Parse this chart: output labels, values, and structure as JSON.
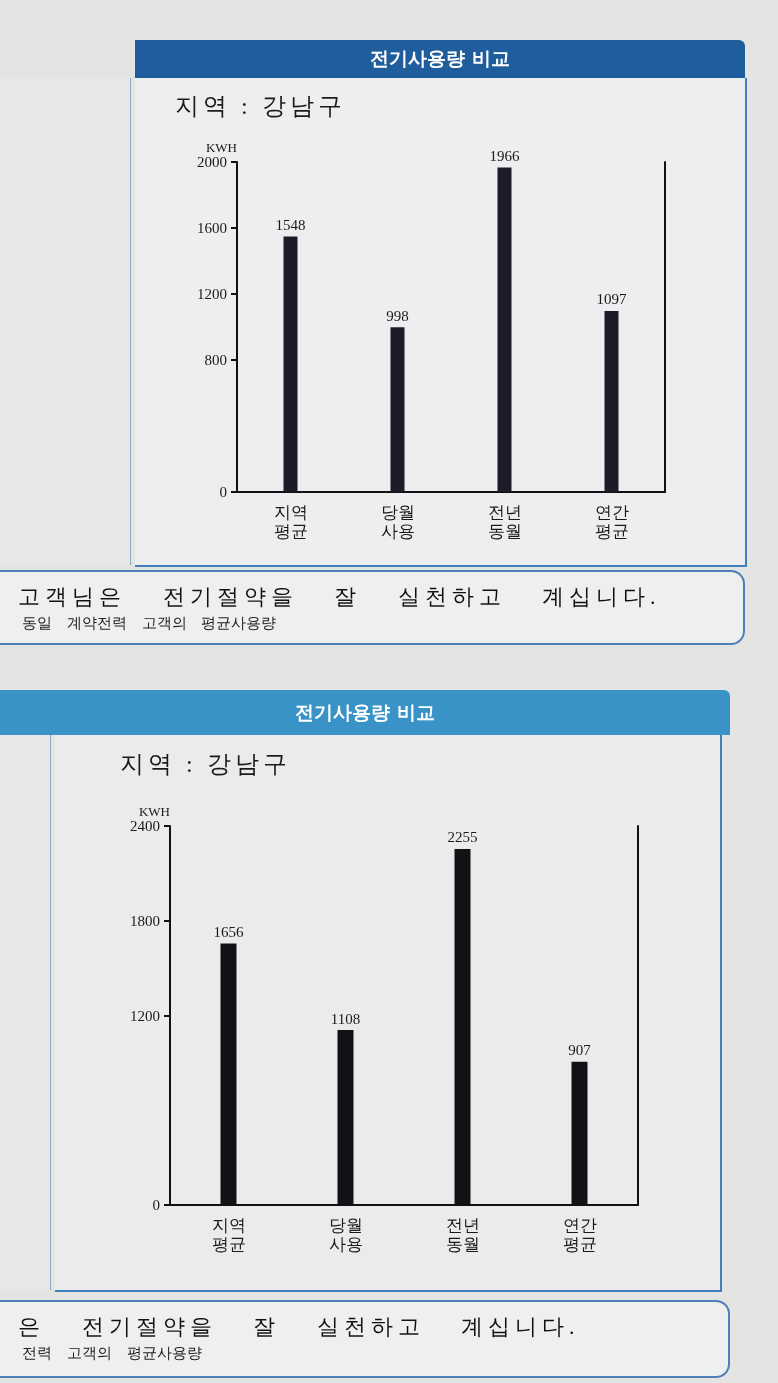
{
  "chart_data": [
    {
      "type": "bar",
      "title": "전기사용량 비교",
      "subtitle": "지역 : 강남구",
      "ylabel": "KWH",
      "categories": [
        "지역 평균",
        "당월 사용",
        "전년 동월",
        "연간 평균"
      ],
      "values": [
        1548,
        998,
        1966,
        1097
      ],
      "color": "#1c1c28",
      "ylim": [
        0,
        2000
      ],
      "yticks": [
        0,
        800,
        1200,
        1600,
        2000
      ],
      "data_labels": true,
      "annotations": [
        "고객님은 전기절약을 잘 실천하고 계십니다.",
        "동일 계약전력 고객의 평균사용량"
      ]
    },
    {
      "type": "bar",
      "title": "전기사용량 비교",
      "subtitle": "지역 : 강남구",
      "ylabel": "KWH",
      "categories": [
        "지역 평균",
        "당월 사용",
        "전년 동월",
        "연간 평균"
      ],
      "values": [
        1656,
        1108,
        2255,
        907
      ],
      "color": "#121216",
      "ylim": [
        0,
        2400
      ],
      "yticks": [
        0,
        1200,
        1800,
        2400
      ],
      "data_labels": true,
      "annotations": [
        "은 전기절약을 잘 실천하고 계십니다.",
        "전력 고객의 평균사용량"
      ]
    }
  ]
}
